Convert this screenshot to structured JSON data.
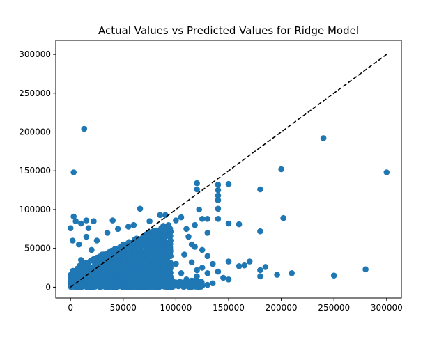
{
  "chart_data": {
    "type": "scatter",
    "title": "Actual Values vs Predicted Values for Ridge Model",
    "xlabel": "",
    "ylabel": "",
    "xlim": [
      -14000,
      314000
    ],
    "ylim": [
      -14000,
      318000
    ],
    "xticks": [
      0,
      50000,
      100000,
      150000,
      200000,
      250000,
      300000
    ],
    "yticks": [
      0,
      50000,
      100000,
      150000,
      200000,
      250000,
      300000
    ],
    "grid": false,
    "colors": {
      "points": "#1f77b4",
      "reference_line": "#000000"
    },
    "reference_line": {
      "style": "dashed",
      "from": [
        0,
        0
      ],
      "to": [
        300000,
        300000
      ]
    },
    "outlier_points": [
      [
        13000,
        204000
      ],
      [
        3000,
        148000
      ],
      [
        240000,
        192000
      ],
      [
        300000,
        148000
      ],
      [
        200000,
        152000
      ],
      [
        180000,
        126000
      ],
      [
        202000,
        89000
      ],
      [
        180000,
        72000
      ],
      [
        150000,
        133000
      ],
      [
        140000,
        132000
      ],
      [
        140000,
        125000
      ],
      [
        140000,
        118000
      ],
      [
        140000,
        112000
      ],
      [
        140000,
        101000
      ],
      [
        140000,
        88000
      ],
      [
        150000,
        82000
      ],
      [
        160000,
        81000
      ],
      [
        120000,
        134000
      ],
      [
        120000,
        126000
      ],
      [
        122000,
        100000
      ],
      [
        125000,
        88000
      ],
      [
        130000,
        88000
      ],
      [
        130000,
        70000
      ],
      [
        118000,
        80000
      ],
      [
        280000,
        23000
      ],
      [
        250000,
        15000
      ],
      [
        210000,
        18000
      ],
      [
        196000,
        16000
      ],
      [
        185000,
        26000
      ],
      [
        180000,
        22000
      ],
      [
        180000,
        14000
      ],
      [
        170000,
        33000
      ],
      [
        165000,
        28000
      ],
      [
        160000,
        27000
      ],
      [
        150000,
        33000
      ],
      [
        150000,
        10000
      ],
      [
        145000,
        12000
      ],
      [
        135000,
        5000
      ],
      [
        130000,
        3000
      ],
      [
        125000,
        2000
      ],
      [
        3000,
        91000
      ],
      [
        5000,
        85000
      ],
      [
        10000,
        82000
      ],
      [
        15000,
        86000
      ],
      [
        22000,
        85000
      ],
      [
        40000,
        86000
      ],
      [
        0,
        76000
      ],
      [
        17000,
        76000
      ],
      [
        66000,
        101000
      ],
      [
        85000,
        93000
      ],
      [
        90000,
        93000
      ],
      [
        100000,
        86000
      ],
      [
        105000,
        90000
      ],
      [
        110000,
        75000
      ],
      [
        112000,
        65000
      ],
      [
        115000,
        55000
      ],
      [
        118000,
        52000
      ],
      [
        125000,
        48000
      ],
      [
        130000,
        40000
      ],
      [
        135000,
        30000
      ],
      [
        140000,
        20000
      ],
      [
        125000,
        25000
      ],
      [
        110000,
        10000
      ],
      [
        120000,
        14000
      ],
      [
        105000,
        18000
      ],
      [
        100000,
        6000
      ],
      [
        95000,
        12000
      ],
      [
        2000,
        60000
      ],
      [
        8000,
        55000
      ],
      [
        15000,
        65000
      ],
      [
        25000,
        60000
      ],
      [
        35000,
        70000
      ],
      [
        45000,
        75000
      ],
      [
        55000,
        78000
      ],
      [
        60000,
        80000
      ],
      [
        75000,
        85000
      ],
      [
        80000,
        70000
      ],
      [
        70000,
        65000
      ],
      [
        20000,
        48000
      ],
      [
        10000,
        35000
      ],
      [
        30000,
        42000
      ],
      [
        50000,
        55000
      ],
      [
        95000,
        40000
      ],
      [
        100000,
        30000
      ],
      [
        108000,
        42000
      ],
      [
        115000,
        32000
      ],
      [
        120000,
        22000
      ],
      [
        130000,
        18000
      ]
    ],
    "dense_cluster": {
      "description_visible": false,
      "x_range": [
        0,
        95000
      ],
      "y_range": [
        0,
        80000
      ],
      "approx_count": 1400
    }
  }
}
